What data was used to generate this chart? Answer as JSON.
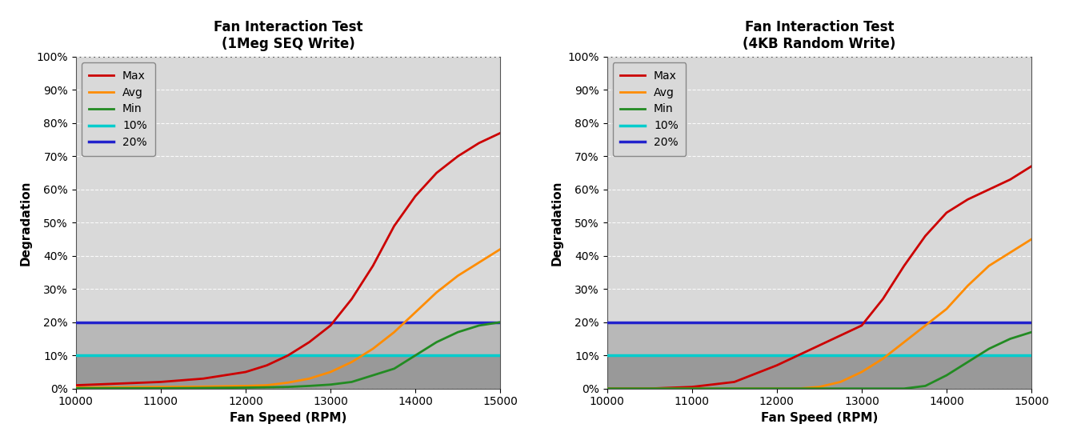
{
  "title1": "Fan Interaction Test\n(1Meg SEQ Write)",
  "title2": "Fan Interaction Test\n(4KB Random Write)",
  "xlabel": "Fan Speed (RPM)",
  "ylabel": "Degradation",
  "xlim": [
    10000,
    15000
  ],
  "ylim": [
    0,
    1.0
  ],
  "yticks": [
    0,
    0.1,
    0.2,
    0.3,
    0.4,
    0.5,
    0.6,
    0.7,
    0.8,
    0.9,
    1.0
  ],
  "xticks": [
    10000,
    11000,
    12000,
    13000,
    14000,
    15000
  ],
  "fig_bg_color": "#ffffff",
  "outer_bg_color": "#d9d9d9",
  "plot_bg_color": "#d9d9d9",
  "band_bottom_color": "#999999",
  "band_mid_color": "#b8b8b8",
  "colors": {
    "Max": "#cc0000",
    "Avg": "#ff8c00",
    "Min": "#228b22",
    "10pct": "#00cccc",
    "20pct": "#2222cc"
  },
  "chart1": {
    "x": [
      10000,
      10500,
      11000,
      11500,
      12000,
      12250,
      12500,
      12750,
      13000,
      13250,
      13500,
      13750,
      14000,
      14250,
      14500,
      14750,
      15000
    ],
    "Max": [
      0.01,
      0.015,
      0.02,
      0.03,
      0.05,
      0.07,
      0.1,
      0.14,
      0.19,
      0.27,
      0.37,
      0.49,
      0.58,
      0.65,
      0.7,
      0.74,
      0.77
    ],
    "Avg": [
      0.003,
      0.004,
      0.005,
      0.006,
      0.008,
      0.01,
      0.018,
      0.03,
      0.05,
      0.08,
      0.12,
      0.17,
      0.23,
      0.29,
      0.34,
      0.38,
      0.42
    ],
    "Min": [
      0.001,
      0.001,
      0.001,
      0.002,
      0.003,
      0.004,
      0.005,
      0.008,
      0.012,
      0.02,
      0.04,
      0.06,
      0.1,
      0.14,
      0.17,
      0.19,
      0.2
    ],
    "10pct": 0.1,
    "20pct": 0.2
  },
  "chart2": {
    "x": [
      10000,
      10500,
      11000,
      11500,
      12000,
      12250,
      12500,
      12750,
      13000,
      13250,
      13500,
      13750,
      14000,
      14250,
      14500,
      14750,
      15000
    ],
    "Max": [
      0.0,
      0.0,
      0.005,
      0.02,
      0.07,
      0.1,
      0.13,
      0.16,
      0.19,
      0.27,
      0.37,
      0.46,
      0.53,
      0.57,
      0.6,
      0.63,
      0.67
    ],
    "Avg": [
      0.0,
      0.0,
      0.0,
      0.0,
      0.0,
      0.0,
      0.005,
      0.02,
      0.05,
      0.09,
      0.14,
      0.19,
      0.24,
      0.31,
      0.37,
      0.41,
      0.45
    ],
    "Min": [
      0.0,
      0.0,
      0.0,
      0.0,
      0.0,
      0.0,
      0.0,
      0.0,
      0.0,
      0.0,
      0.0,
      0.008,
      0.04,
      0.08,
      0.12,
      0.15,
      0.17
    ],
    "10pct": 0.1,
    "20pct": 0.2
  },
  "line_width": 2.0,
  "title_fontsize": 12,
  "axis_label_fontsize": 11,
  "tick_fontsize": 10,
  "legend_fontsize": 10
}
